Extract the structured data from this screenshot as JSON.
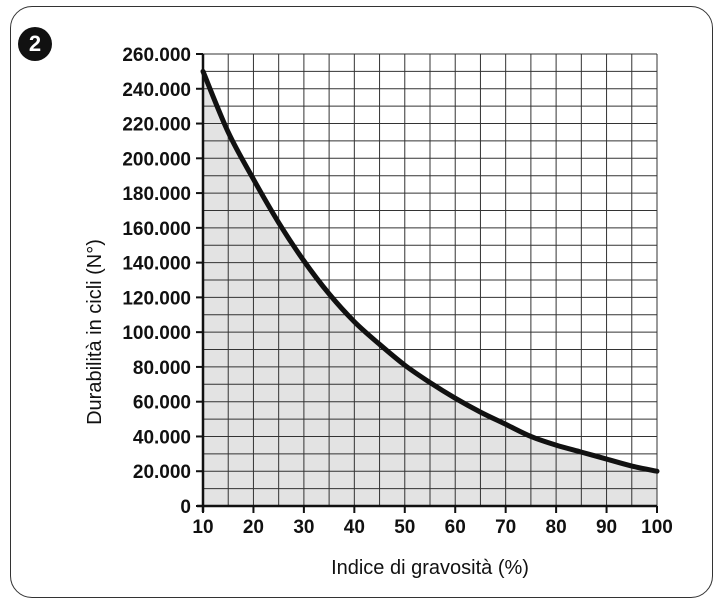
{
  "badge": "2",
  "chart_data": {
    "type": "area",
    "title": "",
    "xlabel": "Indice di gravosità (%)",
    "ylabel": "Durabilità in cicli (N°)",
    "xlim": [
      10,
      100
    ],
    "ylim": [
      0,
      260000
    ],
    "grid": true,
    "x_ticks": [
      10,
      20,
      30,
      40,
      50,
      60,
      70,
      80,
      90,
      100
    ],
    "x_tick_labels": [
      "10",
      "20",
      "30",
      "40",
      "50",
      "60",
      "70",
      "80",
      "90",
      "100"
    ],
    "y_ticks": [
      0,
      20000,
      40000,
      60000,
      80000,
      100000,
      120000,
      140000,
      160000,
      180000,
      200000,
      220000,
      240000,
      260000
    ],
    "y_tick_labels": [
      "0",
      "20.000",
      "40.000",
      "60.000",
      "80.000",
      "100.000",
      "120.000",
      "140.000",
      "160.000",
      "180.000",
      "200.000",
      "220.000",
      "240.000",
      "260.000"
    ],
    "series": [
      {
        "x": [
          10,
          15,
          20,
          25,
          30,
          35,
          40,
          45,
          50,
          55,
          60,
          65,
          70,
          75,
          80,
          85,
          90,
          95,
          100
        ],
        "values": [
          250000,
          215000,
          188000,
          163000,
          141000,
          122000,
          106000,
          93000,
          81000,
          71000,
          62000,
          54000,
          47000,
          40000,
          35000,
          31000,
          27000,
          23000,
          20000
        ]
      }
    ],
    "colors": {
      "fill": "#e3e3e3",
      "line": "#111111",
      "grid": "#333333"
    }
  }
}
